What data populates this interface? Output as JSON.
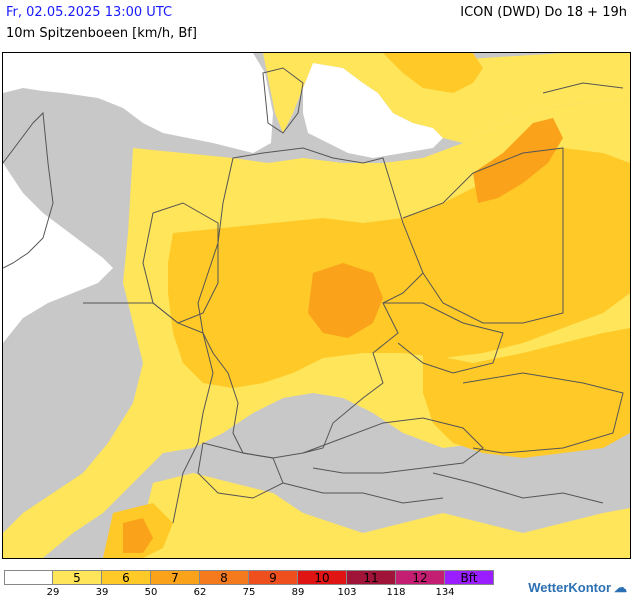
{
  "header": {
    "date": "Fr, 02.05.2025 13:00 UTC",
    "parameter": "10m Spitzenboeen [km/h, Bf]",
    "model": "ICON (DWD) Do 18 + 19h"
  },
  "legend": {
    "swatches": [
      {
        "label": "",
        "color": "#ffffff"
      },
      {
        "label": "5",
        "color": "#ffe55a"
      },
      {
        "label": "6",
        "color": "#ffc928"
      },
      {
        "label": "7",
        "color": "#f9a21a"
      },
      {
        "label": "8",
        "color": "#f57a1e"
      },
      {
        "label": "9",
        "color": "#ee4f1c"
      },
      {
        "label": "10",
        "color": "#e11414"
      },
      {
        "label": "11",
        "color": "#a0143a"
      },
      {
        "label": "12",
        "color": "#c41e72"
      },
      {
        "label": "Bft",
        "color": "#9a1eff"
      }
    ],
    "ticks": [
      "29",
      "39",
      "50",
      "62",
      "75",
      "89",
      "103",
      "118",
      "134"
    ]
  },
  "logo": {
    "text": "WetterKontor",
    "icon": "weather-icon"
  },
  "colors": {
    "land_gray": "#c8c8c8",
    "sea": "#ffffff",
    "bft5": "#ffe55a",
    "bft6": "#ffc928",
    "bft7": "#f9a21a",
    "borders": "#555555"
  }
}
